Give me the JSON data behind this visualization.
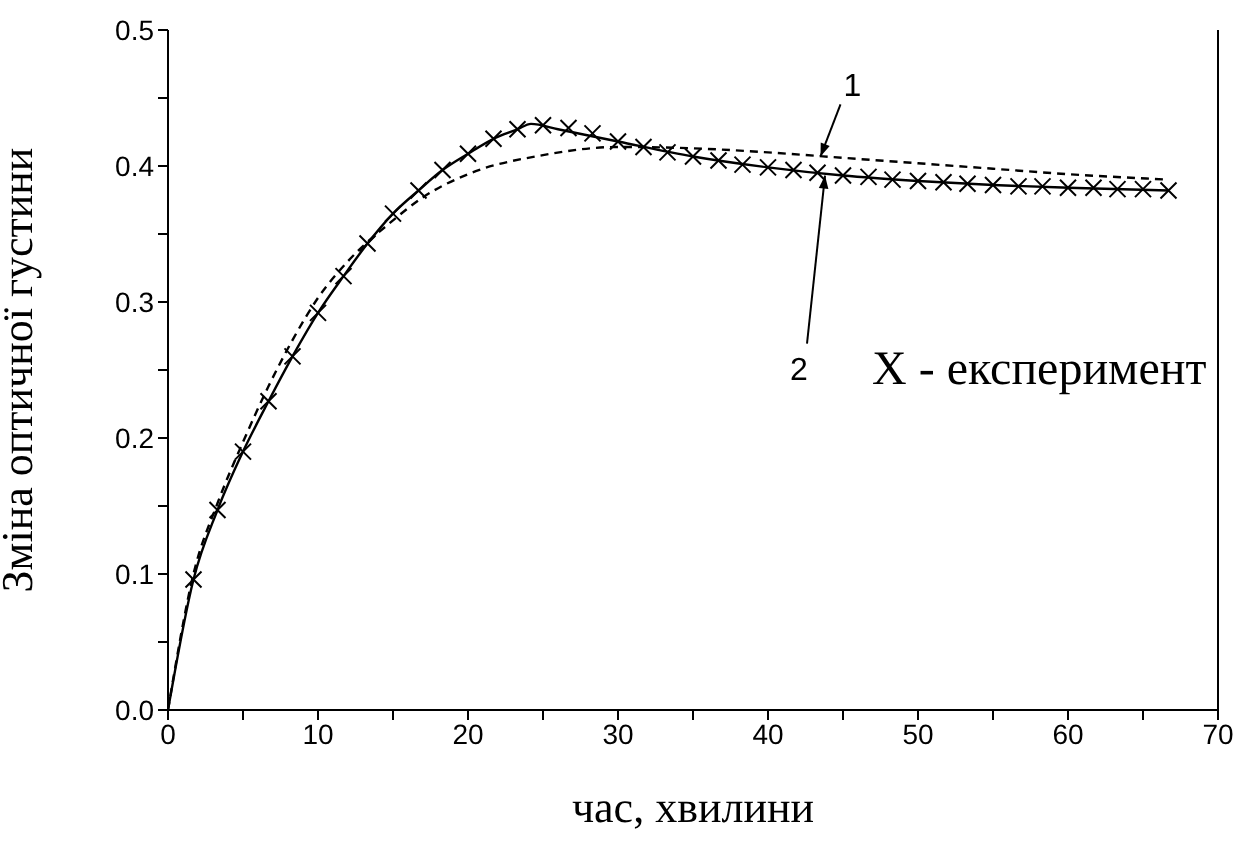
{
  "chart_data": {
    "type": "line",
    "xlabel": "час, хвилини",
    "ylabel": "Зміна оптичної густини",
    "xlim": [
      0,
      70
    ],
    "ylim": [
      0,
      0.5
    ],
    "xticks": [
      0,
      {
        "value": 5,
        "label": null
      },
      10,
      {
        "value": 15,
        "label": null
      },
      20,
      {
        "value": 25,
        "label": null
      },
      30,
      {
        "value": 35,
        "label": null
      },
      40,
      {
        "value": 45,
        "label": null
      },
      50,
      {
        "value": 55,
        "label": null
      },
      60,
      {
        "value": 65,
        "label": null
      },
      70
    ],
    "yticks": [
      {
        "value": 0,
        "label": "0.0"
      },
      {
        "value": 0.05,
        "label": null
      },
      {
        "value": 0.1,
        "label": "0.1"
      },
      {
        "value": 0.15,
        "label": null
      },
      {
        "value": 0.2,
        "label": "0.2"
      },
      {
        "value": 0.25,
        "label": null
      },
      {
        "value": 0.3,
        "label": "0.3"
      },
      {
        "value": 0.35,
        "label": null
      },
      {
        "value": 0.4,
        "label": "0.4"
      },
      {
        "value": 0.45,
        "label": null
      },
      {
        "value": 0.5,
        "label": "0.5"
      }
    ],
    "grid": false,
    "series": [
      {
        "line_style": "dashed",
        "marker": "none",
        "color": "#000000",
        "x": [
          0,
          1.7,
          3.3,
          5,
          6.7,
          8.3,
          10,
          12,
          15,
          17,
          20,
          25,
          30,
          35,
          40,
          45,
          50,
          55,
          60,
          66.7
        ],
        "values": [
          0,
          0.1,
          0.152,
          0.197,
          0.238,
          0.272,
          0.303,
          0.33,
          0.36,
          0.377,
          0.394,
          0.408,
          0.414,
          0.413,
          0.41,
          0.406,
          0.402,
          0.398,
          0.394,
          0.39
        ]
      },
      {
        "line_style": "solid",
        "marker": "none",
        "color": "#000000",
        "x": [
          0,
          1.7,
          3.3,
          5,
          6.7,
          8.3,
          10,
          11.7,
          13.3,
          15,
          16.7,
          18.3,
          20,
          21.7,
          23.3,
          24.2,
          26,
          30,
          35,
          40,
          45,
          50,
          55,
          60,
          66.7
        ],
        "values": [
          0,
          0.096,
          0.147,
          0.19,
          0.227,
          0.26,
          0.292,
          0.319,
          0.343,
          0.365,
          0.382,
          0.397,
          0.409,
          0.42,
          0.427,
          0.431,
          0.427,
          0.418,
          0.407,
          0.399,
          0.393,
          0.389,
          0.386,
          0.384,
          0.382
        ]
      },
      {
        "type": "scatter",
        "marker": "cross",
        "color": "#000000",
        "x": [
          1.7,
          3.3,
          5,
          6.7,
          8.3,
          10,
          11.7,
          13.3,
          15,
          16.7,
          18.3,
          20,
          21.7,
          23.3,
          25,
          26.7,
          28.3,
          30,
          31.7,
          33.3,
          35,
          36.7,
          38.3,
          40,
          41.7,
          43.3,
          45,
          46.7,
          48.3,
          50,
          51.7,
          53.3,
          55,
          56.7,
          58.3,
          60,
          61.7,
          63.3,
          65,
          66.7
        ],
        "values": [
          0.096,
          0.147,
          0.19,
          0.227,
          0.26,
          0.292,
          0.319,
          0.343,
          0.365,
          0.382,
          0.397,
          0.409,
          0.42,
          0.427,
          0.43,
          0.428,
          0.424,
          0.418,
          0.414,
          0.41,
          0.407,
          0.404,
          0.401,
          0.399,
          0.397,
          0.395,
          0.393,
          0.392,
          0.39,
          0.389,
          0.388,
          0.387,
          0.386,
          0.385,
          0.385,
          0.384,
          0.384,
          0.383,
          0.383,
          0.382
        ]
      }
    ],
    "annotations": [
      {
        "text": "1",
        "x": 43.5,
        "y": 0.407
      },
      {
        "text": "2",
        "x": 43.8,
        "y": 0.393
      },
      "X - експеримент"
    ]
  }
}
